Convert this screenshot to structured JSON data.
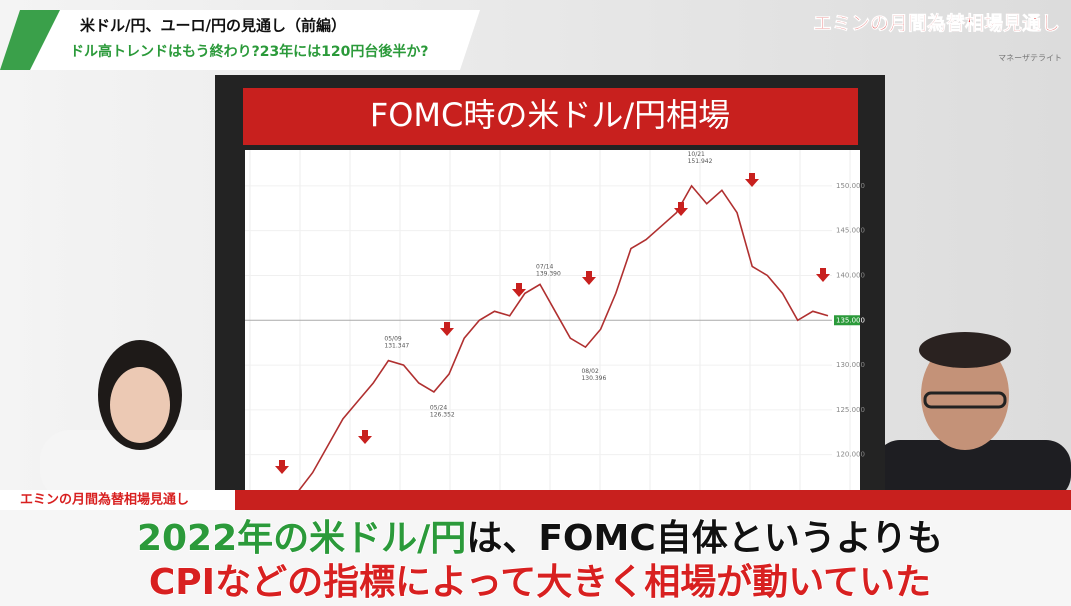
{
  "header": {
    "title": "米ドル/円、ユーロ/円の見通し（前編）",
    "subtitle": "ドル高トレンドはもう終わり?23年には120円台後半か?"
  },
  "logo": {
    "title": "エミンの月間為替相場見通し",
    "channel": "マネーザテライト"
  },
  "chart_data": {
    "type": "line",
    "title": "FOMC時の米ドル/円相場",
    "color": "#b03030",
    "values": [
      115.5,
      115.4,
      115.2,
      115.8,
      118,
      121,
      124,
      126,
      128,
      130.5,
      130,
      128,
      127,
      129,
      133,
      135,
      136,
      135.5,
      138,
      139,
      136,
      133,
      132,
      134,
      138,
      143,
      144,
      145.5,
      147,
      150,
      148,
      149.5,
      147,
      141,
      140,
      138,
      135,
      136,
      135.5
    ],
    "ylim": [
      115.5,
      154
    ],
    "yticks": [
      {
        "value": 120,
        "label": "120.000"
      },
      {
        "value": 125,
        "label": "125.000"
      },
      {
        "value": 130,
        "label": "130.000"
      },
      {
        "value": 135,
        "label": "135.000"
      },
      {
        "value": 140,
        "label": "140.000"
      },
      {
        "value": 145,
        "label": "145.000"
      },
      {
        "value": 150,
        "label": "150.000"
      }
    ],
    "annotations": [
      {
        "date": "05/09",
        "label": "131.347",
        "value": 131.347,
        "index": 9
      },
      {
        "date": "05/24",
        "label": "126.352",
        "value": 126.352,
        "index": 12
      },
      {
        "date": "07/14",
        "label": "139.390",
        "value": 139.39,
        "index": 19
      },
      {
        "date": "08/02",
        "label": "130.396",
        "value": 130.396,
        "index": 22
      },
      {
        "date": "10/21",
        "label": "151.942",
        "value": 151.942,
        "index": 29
      }
    ]
  },
  "caption": {
    "strip": "エミンの月間為替相場見通し",
    "line1_green": "2022年の米ドル/円",
    "line1_black": "は、FOMC自体というよりも",
    "line2": "CPIなどの指標によって大きく相場が動いていた"
  }
}
